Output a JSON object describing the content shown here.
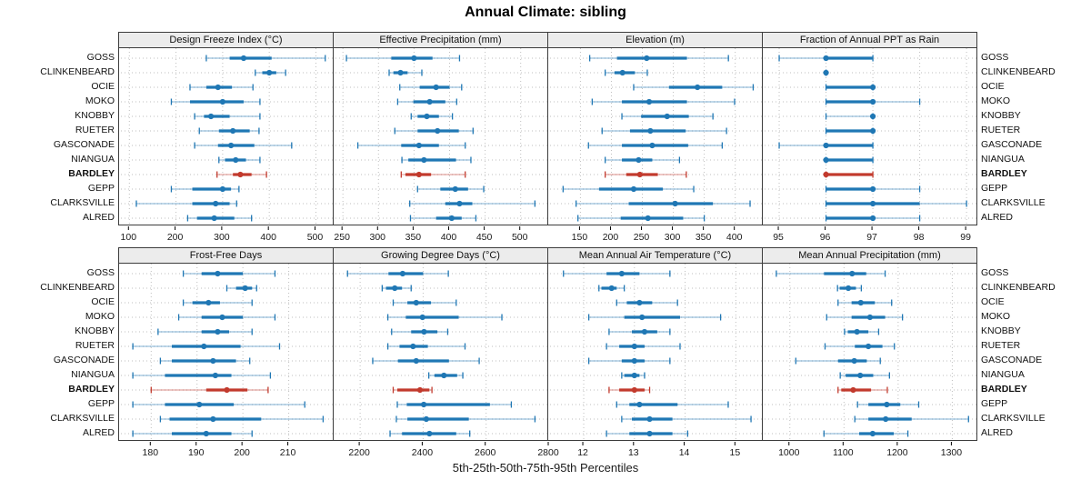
{
  "title": "Annual Climate: sibling",
  "footer": "5th-25th-50th-75th-95th Percentiles",
  "percentile_labels": [
    "5th",
    "25th",
    "50th",
    "75th",
    "95th"
  ],
  "sites": [
    "GOSS",
    "CLINKENBEARD",
    "OCIE",
    "MOKO",
    "KNOBBY",
    "RUETER",
    "GASCONADE",
    "NIANGUA",
    "BARDLEY",
    "GEPP",
    "CLARKSVILLE",
    "ALRED"
  ],
  "highlight_site": "BARDLEY",
  "colors": {
    "series": "#1f77b4",
    "highlight": "#c23a2d",
    "band_alpha": 0.45,
    "header_bg": "#ececec",
    "grid": "#bfbfbf",
    "border": "#3c3c3c",
    "tick_text": "#1a1a1a"
  },
  "chart_data": [
    {
      "type": "range-dot",
      "title": "Design Freeze Index (°C)",
      "xlim": [
        78,
        540
      ],
      "ticks": [
        100,
        200,
        300,
        400,
        500
      ],
      "series": [
        {
          "name": "GOSS",
          "values": [
            265,
            315,
            345,
            405,
            520
          ]
        },
        {
          "name": "CLINKENBEARD",
          "values": [
            370,
            385,
            400,
            415,
            435
          ]
        },
        {
          "name": "OCIE",
          "values": [
            230,
            265,
            290,
            320,
            365
          ]
        },
        {
          "name": "MOKO",
          "values": [
            190,
            230,
            300,
            345,
            380
          ]
        },
        {
          "name": "KNOBBY",
          "values": [
            240,
            260,
            275,
            315,
            380
          ]
        },
        {
          "name": "RUETER",
          "values": [
            250,
            292,
            322,
            358,
            378
          ]
        },
        {
          "name": "GASCONADE",
          "values": [
            240,
            290,
            318,
            368,
            448
          ]
        },
        {
          "name": "NIANGUA",
          "values": [
            292,
            305,
            328,
            350,
            380
          ]
        },
        {
          "name": "BARDLEY",
          "values": [
            288,
            322,
            338,
            362,
            394
          ]
        },
        {
          "name": "GEPP",
          "values": [
            190,
            235,
            300,
            318,
            335
          ]
        },
        {
          "name": "CLARKSVILLE",
          "values": [
            115,
            235,
            285,
            315,
            330
          ]
        },
        {
          "name": "ALRED",
          "values": [
            225,
            245,
            282,
            325,
            362
          ]
        }
      ]
    },
    {
      "type": "range-dot",
      "title": "Effective Precipitation (mm)",
      "xlim": [
        237,
        540
      ],
      "ticks": [
        250,
        300,
        350,
        400,
        450,
        500
      ],
      "series": [
        {
          "name": "GOSS",
          "values": [
            255,
            318,
            350,
            376,
            414
          ]
        },
        {
          "name": "CLINKENBEARD",
          "values": [
            315,
            321,
            331,
            341,
            361
          ]
        },
        {
          "name": "OCIE",
          "values": [
            330,
            358,
            381,
            400,
            417
          ]
        },
        {
          "name": "MOKO",
          "values": [
            327,
            349,
            372,
            394,
            410
          ]
        },
        {
          "name": "KNOBBY",
          "values": [
            346,
            355,
            368,
            385,
            404
          ]
        },
        {
          "name": "RUETER",
          "values": [
            323,
            355,
            383,
            413,
            433
          ]
        },
        {
          "name": "GASCONADE",
          "values": [
            271,
            332,
            357,
            385,
            422
          ]
        },
        {
          "name": "NIANGUA",
          "values": [
            333,
            342,
            364,
            409,
            430
          ]
        },
        {
          "name": "BARDLEY",
          "values": [
            332,
            338,
            357,
            374,
            422
          ]
        },
        {
          "name": "GEPP",
          "values": [
            355,
            387,
            408,
            426,
            448
          ]
        },
        {
          "name": "CLARKSVILLE",
          "values": [
            344,
            394,
            414,
            432,
            520
          ]
        },
        {
          "name": "ALRED",
          "values": [
            345,
            381,
            403,
            417,
            437
          ]
        }
      ]
    },
    {
      "type": "range-dot",
      "title": "Elevation (m)",
      "xlim": [
        98,
        446
      ],
      "ticks": [
        150,
        200,
        250,
        300,
        350,
        400
      ],
      "series": [
        {
          "name": "GOSS",
          "values": [
            165,
            209,
            257,
            322,
            389
          ]
        },
        {
          "name": "CLINKENBEARD",
          "values": [
            190,
            205,
            218,
            238,
            258
          ]
        },
        {
          "name": "OCIE",
          "values": [
            236,
            293,
            339,
            379,
            429
          ]
        },
        {
          "name": "MOKO",
          "values": [
            169,
            217,
            261,
            322,
            399
          ]
        },
        {
          "name": "KNOBBY",
          "values": [
            217,
            248,
            290,
            325,
            364
          ]
        },
        {
          "name": "RUETER",
          "values": [
            185,
            230,
            263,
            320,
            386
          ]
        },
        {
          "name": "GASCONADE",
          "values": [
            163,
            217,
            266,
            324,
            379
          ]
        },
        {
          "name": "NIANGUA",
          "values": [
            190,
            217,
            244,
            266,
            310
          ]
        },
        {
          "name": "BARDLEY",
          "values": [
            190,
            224,
            246,
            275,
            321
          ]
        },
        {
          "name": "GEPP",
          "values": [
            122,
            180,
            236,
            283,
            333
          ]
        },
        {
          "name": "CLARKSVILLE",
          "values": [
            143,
            228,
            303,
            364,
            424
          ]
        },
        {
          "name": "ALRED",
          "values": [
            146,
            215,
            259,
            316,
            350
          ]
        }
      ]
    },
    {
      "type": "range-dot",
      "title": "Fraction of Annual PPT as Rain",
      "xlim": [
        94.65,
        99.25
      ],
      "ticks": [
        95,
        96,
        97,
        98,
        99
      ],
      "series": [
        {
          "name": "GOSS",
          "values": [
            95,
            96,
            96,
            97,
            97
          ]
        },
        {
          "name": "CLINKENBEARD",
          "values": [
            96,
            96,
            96,
            96,
            96
          ]
        },
        {
          "name": "OCIE",
          "values": [
            96,
            96,
            97,
            97,
            97
          ]
        },
        {
          "name": "MOKO",
          "values": [
            96,
            96,
            97,
            97,
            98
          ]
        },
        {
          "name": "KNOBBY",
          "values": [
            96,
            97,
            97,
            97,
            97
          ]
        },
        {
          "name": "RUETER",
          "values": [
            96,
            96,
            97,
            97,
            97
          ]
        },
        {
          "name": "GASCONADE",
          "values": [
            95,
            96,
            96,
            97,
            97
          ]
        },
        {
          "name": "NIANGUA",
          "values": [
            96,
            96,
            96,
            97,
            97
          ]
        },
        {
          "name": "BARDLEY",
          "values": [
            96,
            96,
            96,
            97,
            97
          ]
        },
        {
          "name": "GEPP",
          "values": [
            96,
            96,
            97,
            97,
            98
          ]
        },
        {
          "name": "CLARKSVILLE",
          "values": [
            96,
            96,
            97,
            98,
            99
          ]
        },
        {
          "name": "ALRED",
          "values": [
            96,
            96,
            97,
            97,
            98
          ]
        }
      ]
    },
    {
      "type": "range-dot",
      "title": "Frost-Free Days",
      "xlim": [
        173,
        220
      ],
      "ticks": [
        180,
        190,
        200,
        210
      ],
      "series": [
        {
          "name": "GOSS",
          "values": [
            187,
            191,
            194.5,
            200,
            207
          ]
        },
        {
          "name": "CLINKENBEARD",
          "values": [
            196.5,
            198.5,
            200.5,
            202,
            203
          ]
        },
        {
          "name": "OCIE",
          "values": [
            187,
            189,
            192.5,
            195,
            202
          ]
        },
        {
          "name": "MOKO",
          "values": [
            186,
            191,
            195.5,
            200,
            207
          ]
        },
        {
          "name": "KNOBBY",
          "values": [
            181.5,
            191,
            194.5,
            197,
            202
          ]
        },
        {
          "name": "RUETER",
          "values": [
            176,
            184.5,
            191.5,
            199.5,
            208
          ]
        },
        {
          "name": "GASCONADE",
          "values": [
            182,
            184.5,
            193.5,
            198.5,
            201.5
          ]
        },
        {
          "name": "NIANGUA",
          "values": [
            176,
            183,
            194,
            197.5,
            206
          ]
        },
        {
          "name": "BARDLEY",
          "values": [
            180,
            192,
            196.5,
            201,
            205.5
          ]
        },
        {
          "name": "GEPP",
          "values": [
            176,
            183,
            190.5,
            198,
            213.5
          ]
        },
        {
          "name": "CLARKSVILLE",
          "values": [
            182,
            184,
            193.5,
            204,
            217.5
          ]
        },
        {
          "name": "ALRED",
          "values": [
            176,
            184.5,
            192,
            197.5,
            202
          ]
        }
      ]
    },
    {
      "type": "range-dot",
      "title": "Growing Degree Days (°C)",
      "xlim": [
        2116,
        2800
      ],
      "ticks": [
        2200,
        2400,
        2600,
        2800
      ],
      "series": [
        {
          "name": "GOSS",
          "values": [
            2160,
            2290,
            2335,
            2400,
            2480
          ]
        },
        {
          "name": "CLINKENBEARD",
          "values": [
            2270,
            2282,
            2310,
            2333,
            2362
          ]
        },
        {
          "name": "OCIE",
          "values": [
            2305,
            2350,
            2378,
            2425,
            2505
          ]
        },
        {
          "name": "MOKO",
          "values": [
            2288,
            2345,
            2398,
            2513,
            2650
          ]
        },
        {
          "name": "KNOBBY",
          "values": [
            2300,
            2362,
            2403,
            2445,
            2478
          ]
        },
        {
          "name": "RUETER",
          "values": [
            2288,
            2325,
            2368,
            2415,
            2533
          ]
        },
        {
          "name": "GASCONADE",
          "values": [
            2240,
            2320,
            2378,
            2482,
            2578
          ]
        },
        {
          "name": "NIANGUA",
          "values": [
            2418,
            2436,
            2466,
            2508,
            2526
          ]
        },
        {
          "name": "BARDLEY",
          "values": [
            2305,
            2318,
            2390,
            2420,
            2428
          ]
        },
        {
          "name": "GEPP",
          "values": [
            2318,
            2348,
            2402,
            2612,
            2680
          ]
        },
        {
          "name": "CLARKSVILLE",
          "values": [
            2315,
            2350,
            2410,
            2545,
            2755
          ]
        },
        {
          "name": "ALRED",
          "values": [
            2295,
            2333,
            2420,
            2505,
            2548
          ]
        }
      ]
    },
    {
      "type": "range-dot",
      "title": "Mean Annual Air Temperature (°C)",
      "xlim": [
        11.3,
        15.55
      ],
      "ticks": [
        12,
        13,
        14,
        15
      ],
      "series": [
        {
          "name": "GOSS",
          "values": [
            11.6,
            12.45,
            12.75,
            13.1,
            13.7
          ]
        },
        {
          "name": "CLINKENBEARD",
          "values": [
            12.3,
            12.35,
            12.55,
            12.65,
            12.8
          ]
        },
        {
          "name": "OCIE",
          "values": [
            12.65,
            12.85,
            13.1,
            13.35,
            13.85
          ]
        },
        {
          "name": "MOKO",
          "values": [
            12.1,
            12.8,
            13.15,
            13.9,
            14.7
          ]
        },
        {
          "name": "KNOBBY",
          "values": [
            12.5,
            12.95,
            13.2,
            13.45,
            13.7
          ]
        },
        {
          "name": "RUETER",
          "values": [
            12.45,
            12.7,
            13.0,
            13.2,
            13.9
          ]
        },
        {
          "name": "GASCONADE",
          "values": [
            12.1,
            12.75,
            13.0,
            13.2,
            13.7
          ]
        },
        {
          "name": "NIANGUA",
          "values": [
            12.75,
            12.8,
            13.0,
            13.1,
            13.2
          ]
        },
        {
          "name": "BARDLEY",
          "values": [
            12.5,
            12.7,
            13.0,
            13.2,
            13.3
          ]
        },
        {
          "name": "GEPP",
          "values": [
            12.65,
            12.9,
            13.1,
            13.85,
            14.85
          ]
        },
        {
          "name": "CLARKSVILLE",
          "values": [
            12.75,
            12.95,
            13.3,
            13.75,
            15.3
          ]
        },
        {
          "name": "ALRED",
          "values": [
            12.45,
            12.9,
            13.3,
            13.75,
            14.05
          ]
        }
      ]
    },
    {
      "type": "range-dot",
      "title": "Mean Annual Precipitation (mm)",
      "xlim": [
        950,
        1348
      ],
      "ticks": [
        1000,
        1100,
        1200,
        1300
      ],
      "series": [
        {
          "name": "GOSS",
          "values": [
            975,
            1063,
            1115,
            1141,
            1176
          ]
        },
        {
          "name": "CLINKENBEARD",
          "values": [
            1088,
            1092,
            1108,
            1122,
            1132
          ]
        },
        {
          "name": "OCIE",
          "values": [
            1089,
            1114,
            1131,
            1157,
            1188
          ]
        },
        {
          "name": "MOKO",
          "values": [
            1068,
            1114,
            1148,
            1176,
            1208
          ]
        },
        {
          "name": "KNOBBY",
          "values": [
            1101,
            1107,
            1124,
            1145,
            1164
          ]
        },
        {
          "name": "RUETER",
          "values": [
            1065,
            1120,
            1145,
            1171,
            1193
          ]
        },
        {
          "name": "GASCONADE",
          "values": [
            1011,
            1089,
            1119,
            1142,
            1167
          ]
        },
        {
          "name": "NIANGUA",
          "values": [
            1093,
            1103,
            1130,
            1154,
            1184
          ]
        },
        {
          "name": "BARDLEY",
          "values": [
            1089,
            1095,
            1117,
            1150,
            1180
          ]
        },
        {
          "name": "GEPP",
          "values": [
            1125,
            1145,
            1179,
            1204,
            1238
          ]
        },
        {
          "name": "CLARKSVILLE",
          "values": [
            1120,
            1145,
            1177,
            1225,
            1330
          ]
        },
        {
          "name": "ALRED",
          "values": [
            1063,
            1128,
            1153,
            1192,
            1218
          ]
        }
      ]
    }
  ]
}
